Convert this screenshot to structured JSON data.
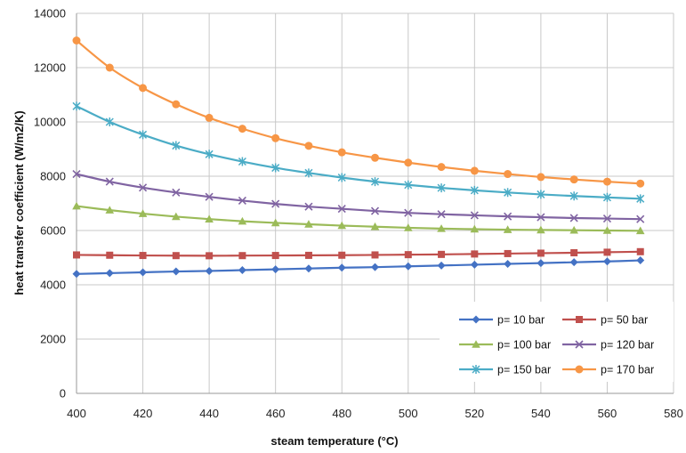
{
  "chart_data": {
    "type": "line",
    "title": "",
    "xlabel": "steam temperature (°C)",
    "ylabel": "heat transfer coefficient (W/m2/K)",
    "xlim": [
      400,
      580
    ],
    "ylim": [
      0,
      14000
    ],
    "xticks": [
      400,
      420,
      440,
      460,
      480,
      500,
      520,
      540,
      560,
      580
    ],
    "yticks": [
      0,
      2000,
      4000,
      6000,
      8000,
      10000,
      12000,
      14000
    ],
    "grid": true,
    "legend_position": "bottom-right",
    "x": [
      400,
      410,
      420,
      430,
      440,
      450,
      460,
      470,
      480,
      490,
      500,
      510,
      520,
      530,
      540,
      550,
      560,
      570
    ],
    "series": [
      {
        "name": "p= 10 bar",
        "color": "#4472C4",
        "marker": "diamond",
        "values": [
          4400,
          4430,
          4460,
          4490,
          4510,
          4540,
          4570,
          4600,
          4630,
          4650,
          4680,
          4710,
          4740,
          4770,
          4800,
          4830,
          4860,
          4900
        ]
      },
      {
        "name": "p= 50 bar",
        "color": "#C0504D",
        "marker": "square",
        "values": [
          5100,
          5090,
          5080,
          5075,
          5070,
          5075,
          5080,
          5085,
          5090,
          5100,
          5110,
          5120,
          5135,
          5150,
          5165,
          5180,
          5200,
          5220
        ]
      },
      {
        "name": "p= 100 bar",
        "color": "#9BBB59",
        "marker": "triangle",
        "values": [
          6900,
          6750,
          6620,
          6510,
          6420,
          6340,
          6280,
          6230,
          6180,
          6140,
          6100,
          6070,
          6050,
          6030,
          6020,
          6010,
          6000,
          5990
        ]
      },
      {
        "name": "p= 120 bar",
        "color": "#8064A2",
        "marker": "x",
        "values": [
          8080,
          7800,
          7580,
          7400,
          7240,
          7100,
          6980,
          6880,
          6800,
          6720,
          6650,
          6600,
          6560,
          6520,
          6490,
          6460,
          6440,
          6420
        ]
      },
      {
        "name": "p= 150 bar",
        "color": "#4BACC6",
        "marker": "star",
        "values": [
          10580,
          10000,
          9530,
          9130,
          8810,
          8540,
          8310,
          8120,
          7950,
          7800,
          7680,
          7570,
          7480,
          7400,
          7330,
          7270,
          7220,
          7170
        ]
      },
      {
        "name": "p= 170 bar",
        "color": "#F79646",
        "marker": "circle",
        "values": [
          13000,
          12000,
          11250,
          10650,
          10150,
          9750,
          9400,
          9120,
          8880,
          8680,
          8500,
          8340,
          8200,
          8080,
          7970,
          7880,
          7800,
          7730
        ]
      }
    ]
  }
}
